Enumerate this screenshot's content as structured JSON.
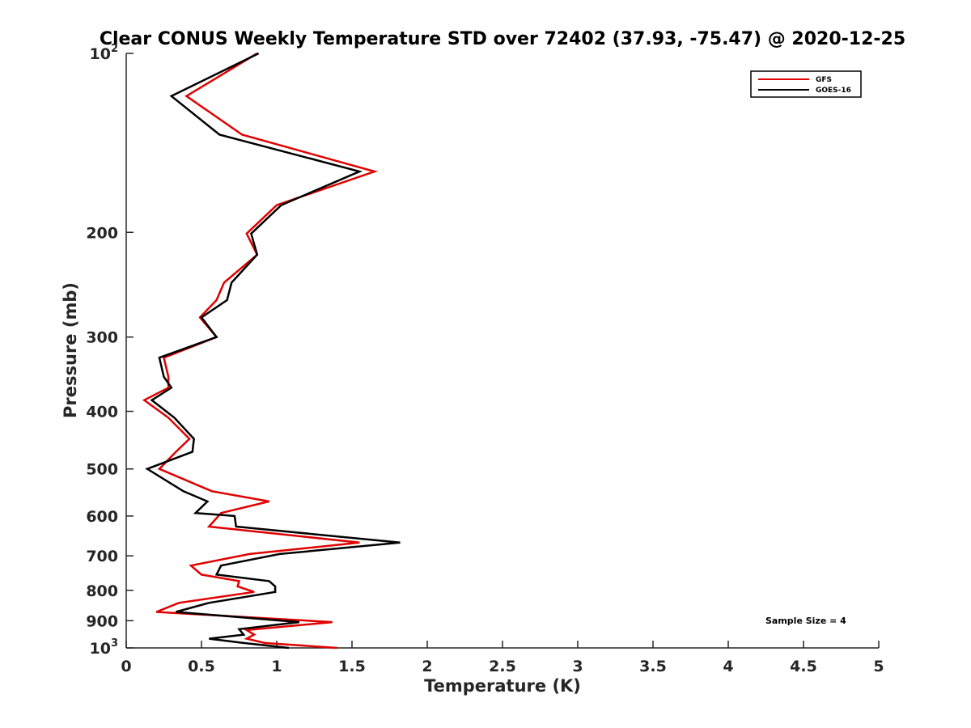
{
  "chart_data": {
    "type": "line",
    "title": "Clear CONUS Weekly Temperature STD over 72402 (37.93, -75.47) @ 2020-12-25",
    "xlabel": "Temperature (K)",
    "ylabel": "Pressure (mb)",
    "xlim": [
      0,
      5
    ],
    "ylim": [
      100,
      1000
    ],
    "yscale": "log",
    "y_reversed": true,
    "grid": false,
    "legend_position": "top-right",
    "x_ticks": [
      0,
      0.5,
      1,
      1.5,
      2,
      2.5,
      3,
      3.5,
      4,
      4.5,
      5
    ],
    "x_tick_labels": [
      "0",
      "0.5",
      "1",
      "1.5",
      "2",
      "2.5",
      "3",
      "3.5",
      "4",
      "4.5",
      "5"
    ],
    "y_ticks": [
      {
        "value": 100,
        "base": "10",
        "exp": "2"
      },
      {
        "value": 200,
        "label": "200"
      },
      {
        "value": 300,
        "label": "300"
      },
      {
        "value": 400,
        "label": "400"
      },
      {
        "value": 500,
        "label": "500"
      },
      {
        "value": 600,
        "label": "600"
      },
      {
        "value": 700,
        "label": "700"
      },
      {
        "value": 800,
        "label": "800"
      },
      {
        "value": 900,
        "label": "900"
      },
      {
        "value": 1000,
        "base": "10",
        "exp": "3"
      }
    ],
    "annotation": "Sample Size = 4",
    "series": [
      {
        "name": "GFS",
        "color": "#e00000",
        "points": [
          [
            0.87,
            100
          ],
          [
            0.4,
            118
          ],
          [
            0.77,
            137
          ],
          [
            1.65,
            158
          ],
          [
            1.0,
            180
          ],
          [
            0.8,
            201
          ],
          [
            0.87,
            218
          ],
          [
            0.65,
            243
          ],
          [
            0.6,
            260
          ],
          [
            0.49,
            278
          ],
          [
            0.6,
            300
          ],
          [
            0.25,
            325
          ],
          [
            0.28,
            350
          ],
          [
            0.28,
            365
          ],
          [
            0.12,
            383
          ],
          [
            0.28,
            410
          ],
          [
            0.42,
            445
          ],
          [
            0.33,
            468
          ],
          [
            0.22,
            500
          ],
          [
            0.57,
            545
          ],
          [
            0.95,
            567
          ],
          [
            0.63,
            593
          ],
          [
            0.55,
            625
          ],
          [
            1.55,
            665
          ],
          [
            0.82,
            695
          ],
          [
            0.43,
            727
          ],
          [
            0.5,
            753
          ],
          [
            0.75,
            772
          ],
          [
            0.74,
            788
          ],
          [
            0.85,
            805
          ],
          [
            0.35,
            840
          ],
          [
            0.2,
            870
          ],
          [
            1.37,
            905
          ],
          [
            0.8,
            933
          ],
          [
            0.85,
            950
          ],
          [
            0.8,
            965
          ],
          [
            0.92,
            981
          ],
          [
            1.4,
            1000
          ]
        ]
      },
      {
        "name": "GOES-16",
        "color": "#000000",
        "points": [
          [
            0.88,
            100
          ],
          [
            0.3,
            118
          ],
          [
            0.62,
            137
          ],
          [
            1.55,
            158
          ],
          [
            1.03,
            180
          ],
          [
            0.83,
            201
          ],
          [
            0.87,
            218
          ],
          [
            0.7,
            243
          ],
          [
            0.67,
            260
          ],
          [
            0.5,
            278
          ],
          [
            0.6,
            300
          ],
          [
            0.22,
            325
          ],
          [
            0.25,
            350
          ],
          [
            0.3,
            365
          ],
          [
            0.17,
            383
          ],
          [
            0.32,
            410
          ],
          [
            0.45,
            445
          ],
          [
            0.44,
            468
          ],
          [
            0.14,
            500
          ],
          [
            0.38,
            545
          ],
          [
            0.54,
            567
          ],
          [
            0.46,
            593
          ],
          [
            0.72,
            600
          ],
          [
            0.73,
            625
          ],
          [
            1.82,
            665
          ],
          [
            1.02,
            695
          ],
          [
            0.63,
            727
          ],
          [
            0.6,
            753
          ],
          [
            0.95,
            772
          ],
          [
            0.99,
            788
          ],
          [
            0.99,
            805
          ],
          [
            0.55,
            840
          ],
          [
            0.33,
            870
          ],
          [
            1.15,
            905
          ],
          [
            0.75,
            930
          ],
          [
            0.78,
            950
          ],
          [
            0.55,
            965
          ],
          [
            0.78,
            981
          ],
          [
            1.08,
            1000
          ]
        ]
      }
    ]
  }
}
